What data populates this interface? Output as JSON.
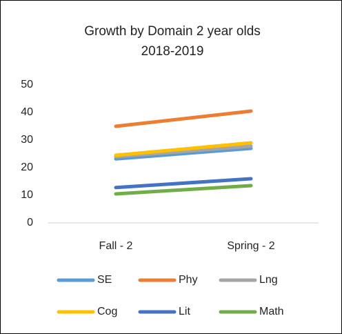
{
  "chart_data": {
    "type": "line",
    "title": "Growth by Domain 2 year olds",
    "subtitle": "2018-2019",
    "categories": [
      "Fall - 2",
      "Spring - 2"
    ],
    "series": [
      {
        "name": "SE",
        "color": "#5b9bd5",
        "values": [
          23.2,
          27
        ]
      },
      {
        "name": "Phy",
        "color": "#ed7d31",
        "values": [
          35,
          40.5
        ]
      },
      {
        "name": "Lng",
        "color": "#a5a5a5",
        "values": [
          24,
          27.8
        ]
      },
      {
        "name": "Cog",
        "color": "#ffc000",
        "values": [
          24.5,
          29
        ]
      },
      {
        "name": "Lit",
        "color": "#4472c4",
        "values": [
          12.8,
          16
        ]
      },
      {
        "name": "Math",
        "color": "#70ad47",
        "values": [
          10.5,
          13.5
        ]
      }
    ],
    "ylim": [
      0,
      50
    ],
    "yticks": [
      0,
      10,
      20,
      30,
      40,
      50
    ],
    "grid": false
  }
}
